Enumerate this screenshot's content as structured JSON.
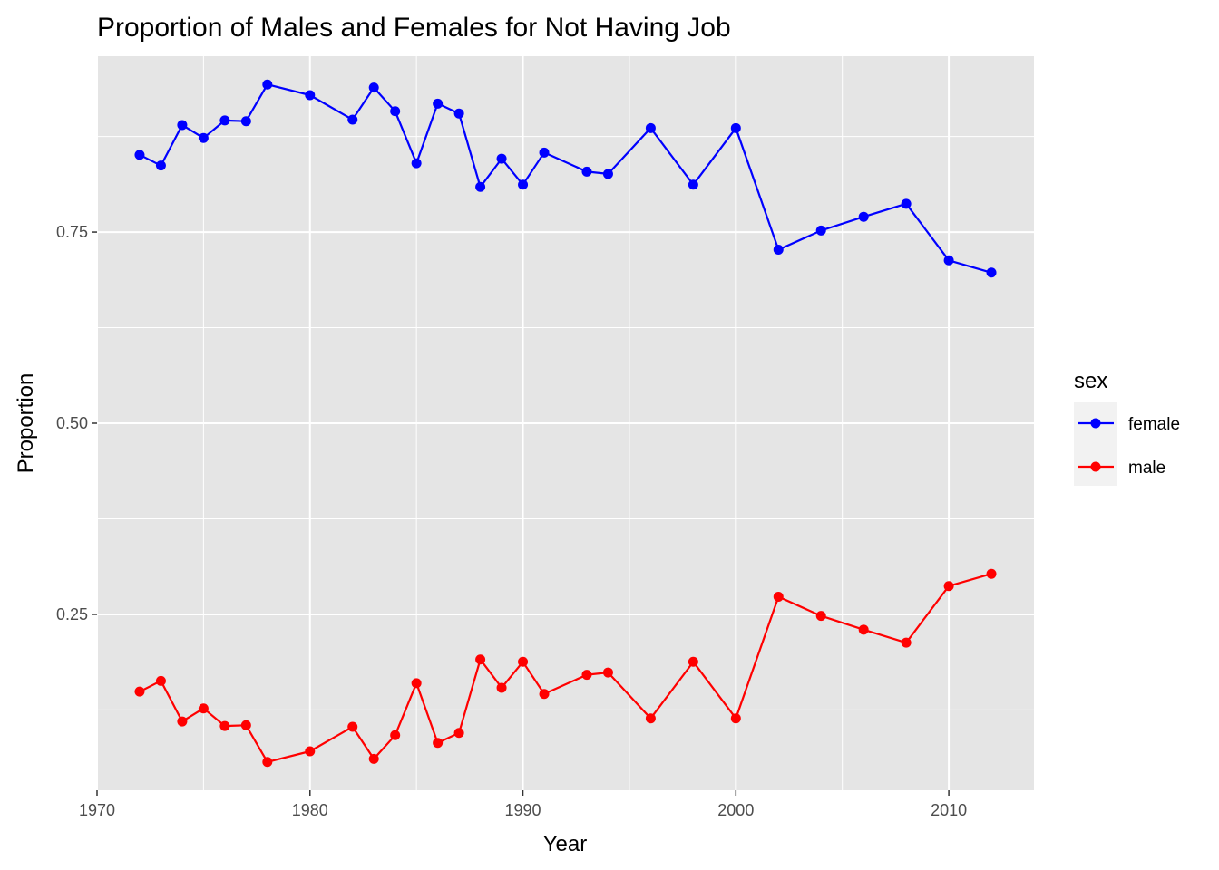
{
  "chart_data": {
    "type": "line",
    "title": "Proportion of Males and Females for Not Having Job",
    "xlabel": "Year",
    "ylabel": "Proportion",
    "xlim": [
      1970,
      2014
    ],
    "ylim": [
      0.02,
      0.98
    ],
    "x_ticks": [
      1970,
      1980,
      1990,
      2000,
      2010
    ],
    "x_tick_labels": [
      "1970",
      "1980",
      "1990",
      "2000",
      "2010"
    ],
    "y_ticks": [
      0.25,
      0.5,
      0.75
    ],
    "y_tick_labels": [
      "0.25",
      "0.50",
      "0.75"
    ],
    "grid": true,
    "legend": {
      "title": "sex",
      "placement": "right"
    },
    "series": [
      {
        "name": "female",
        "color": "#0000ff",
        "points": [
          [
            1972,
            0.851
          ],
          [
            1973,
            0.837
          ],
          [
            1974,
            0.89
          ],
          [
            1975,
            0.873
          ],
          [
            1976,
            0.896
          ],
          [
            1977,
            0.895
          ],
          [
            1978,
            0.943
          ],
          [
            1980,
            0.929
          ],
          [
            1982,
            0.897
          ],
          [
            1983,
            0.939
          ],
          [
            1984,
            0.908
          ],
          [
            1985,
            0.84
          ],
          [
            1986,
            0.918
          ],
          [
            1987,
            0.905
          ],
          [
            1988,
            0.809
          ],
          [
            1989,
            0.846
          ],
          [
            1990,
            0.812
          ],
          [
            1991,
            0.854
          ],
          [
            1993,
            0.829
          ],
          [
            1994,
            0.826
          ],
          [
            1996,
            0.886
          ],
          [
            1998,
            0.812
          ],
          [
            2000,
            0.886
          ],
          [
            2002,
            0.727
          ],
          [
            2004,
            0.752
          ],
          [
            2006,
            0.77
          ],
          [
            2008,
            0.787
          ],
          [
            2010,
            0.713
          ],
          [
            2012,
            0.697
          ]
        ]
      },
      {
        "name": "male",
        "color": "#ff0000",
        "points": [
          [
            1972,
            0.149
          ],
          [
            1973,
            0.163
          ],
          [
            1974,
            0.11
          ],
          [
            1975,
            0.127
          ],
          [
            1976,
            0.104
          ],
          [
            1977,
            0.105
          ],
          [
            1978,
            0.057
          ],
          [
            1980,
            0.071
          ],
          [
            1982,
            0.103
          ],
          [
            1983,
            0.061
          ],
          [
            1984,
            0.092
          ],
          [
            1985,
            0.16
          ],
          [
            1986,
            0.082
          ],
          [
            1987,
            0.095
          ],
          [
            1988,
            0.191
          ],
          [
            1989,
            0.154
          ],
          [
            1990,
            0.188
          ],
          [
            1991,
            0.146
          ],
          [
            1993,
            0.171
          ],
          [
            1994,
            0.174
          ],
          [
            1996,
            0.114
          ],
          [
            1998,
            0.188
          ],
          [
            2000,
            0.114
          ],
          [
            2002,
            0.273
          ],
          [
            2004,
            0.248
          ],
          [
            2006,
            0.23
          ],
          [
            2008,
            0.213
          ],
          [
            2010,
            0.287
          ],
          [
            2012,
            0.303
          ]
        ]
      }
    ]
  }
}
